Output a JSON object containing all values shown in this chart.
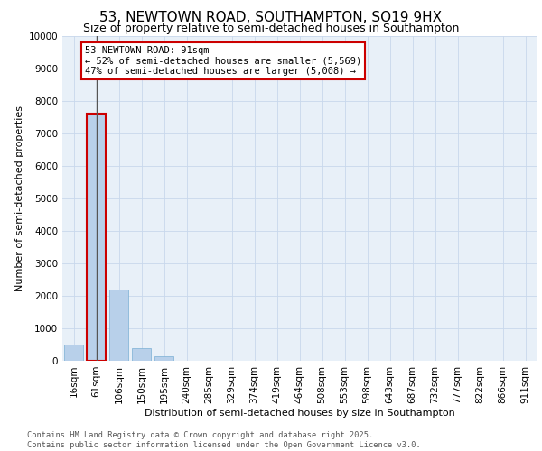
{
  "title_line1": "53, NEWTOWN ROAD, SOUTHAMPTON, SO19 9HX",
  "title_line2": "Size of property relative to semi-detached houses in Southampton",
  "xlabel": "Distribution of semi-detached houses by size in Southampton",
  "ylabel": "Number of semi-detached properties",
  "categories": [
    "16sqm",
    "61sqm",
    "106sqm",
    "150sqm",
    "195sqm",
    "240sqm",
    "285sqm",
    "329sqm",
    "374sqm",
    "419sqm",
    "464sqm",
    "508sqm",
    "553sqm",
    "598sqm",
    "643sqm",
    "687sqm",
    "732sqm",
    "777sqm",
    "822sqm",
    "866sqm",
    "911sqm"
  ],
  "values": [
    500,
    7600,
    2200,
    380,
    130,
    0,
    0,
    0,
    0,
    0,
    0,
    0,
    0,
    0,
    0,
    0,
    0,
    0,
    0,
    0,
    0
  ],
  "bar_color": "#b8d0ea",
  "bar_edge_color": "#7aafd4",
  "highlight_bar_index": 1,
  "highlight_bar_edge_color": "#cc0000",
  "vline_color": "#555555",
  "annotation_text_line1": "53 NEWTOWN ROAD: 91sqm",
  "annotation_text_line2": "← 52% of semi-detached houses are smaller (5,569)",
  "annotation_text_line3": "47% of semi-detached houses are larger (5,008) →",
  "annotation_fontsize": 7.5,
  "annotation_box_color": "#ffffff",
  "annotation_box_edge_color": "#cc0000",
  "ylim": [
    0,
    10000
  ],
  "yticks": [
    0,
    1000,
    2000,
    3000,
    4000,
    5000,
    6000,
    7000,
    8000,
    9000,
    10000
  ],
  "grid_color": "#c8d8ec",
  "background_color": "#e8f0f8",
  "footer_line1": "Contains HM Land Registry data © Crown copyright and database right 2025.",
  "footer_line2": "Contains public sector information licensed under the Open Government Licence v3.0.",
  "title_fontsize": 11,
  "subtitle_fontsize": 9,
  "axis_label_fontsize": 8,
  "tick_fontsize": 7.5
}
